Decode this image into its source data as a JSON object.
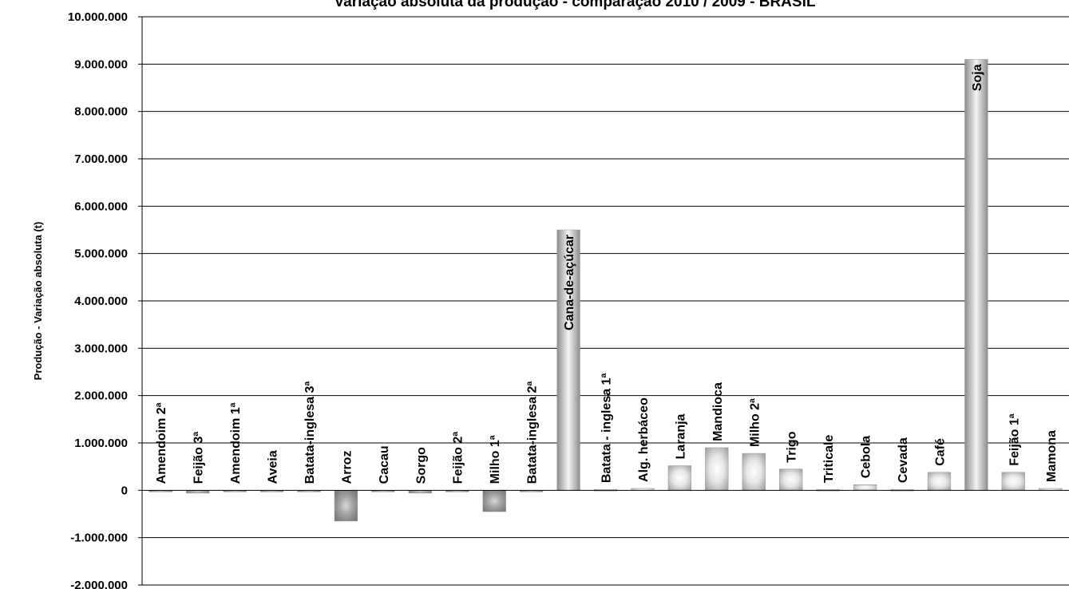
{
  "chart_data": {
    "type": "bar",
    "title": "Variação absoluta da produção - comparação 2010 / 2009 - BRASIL",
    "ylabel": "Produção - Variação absoluta (t)",
    "xlabel": "",
    "ylim": [
      -2000000,
      10000000
    ],
    "ytick_labels": [
      "10.000.000",
      "9.000.000",
      "8.000.000",
      "7.000.000",
      "6.000.000",
      "5.000.000",
      "4.000.000",
      "3.000.000",
      "2.000.000",
      "1.000.000",
      "0",
      "-1.000.000",
      "-2.000.000"
    ],
    "yticks": [
      10000000,
      9000000,
      8000000,
      7000000,
      6000000,
      5000000,
      4000000,
      3000000,
      2000000,
      1000000,
      0,
      -1000000,
      -2000000
    ],
    "grid": true,
    "legend": "none",
    "categories": [
      "Amendoim 2ª",
      "Feijão 3ª",
      "Amendoim 1ª",
      "Aveia",
      "Batata-inglesa 3ª",
      "Arroz",
      "Cacau",
      "Sorgo",
      "Feijão 2ª",
      "Milho 1ª",
      "Batata-inglesa 2ª",
      "Cana-de-açúcar",
      "Batata - inglesa 1ª",
      "Alg. herbáceo",
      "Laranja",
      "Mandioca",
      "Milho 2ª",
      "Trigo",
      "Triticale",
      "Cebola",
      "Cevada",
      "Café",
      "Soja",
      "Feijão 1ª",
      "Mamona"
    ],
    "values": [
      -5000,
      -60000,
      -20000,
      -15000,
      -20000,
      -650000,
      -3000,
      -60000,
      -5000,
      -450000,
      -5000,
      5500000,
      20000,
      40000,
      520000,
      900000,
      780000,
      450000,
      20000,
      120000,
      20000,
      380000,
      9100000,
      380000,
      40000
    ]
  }
}
